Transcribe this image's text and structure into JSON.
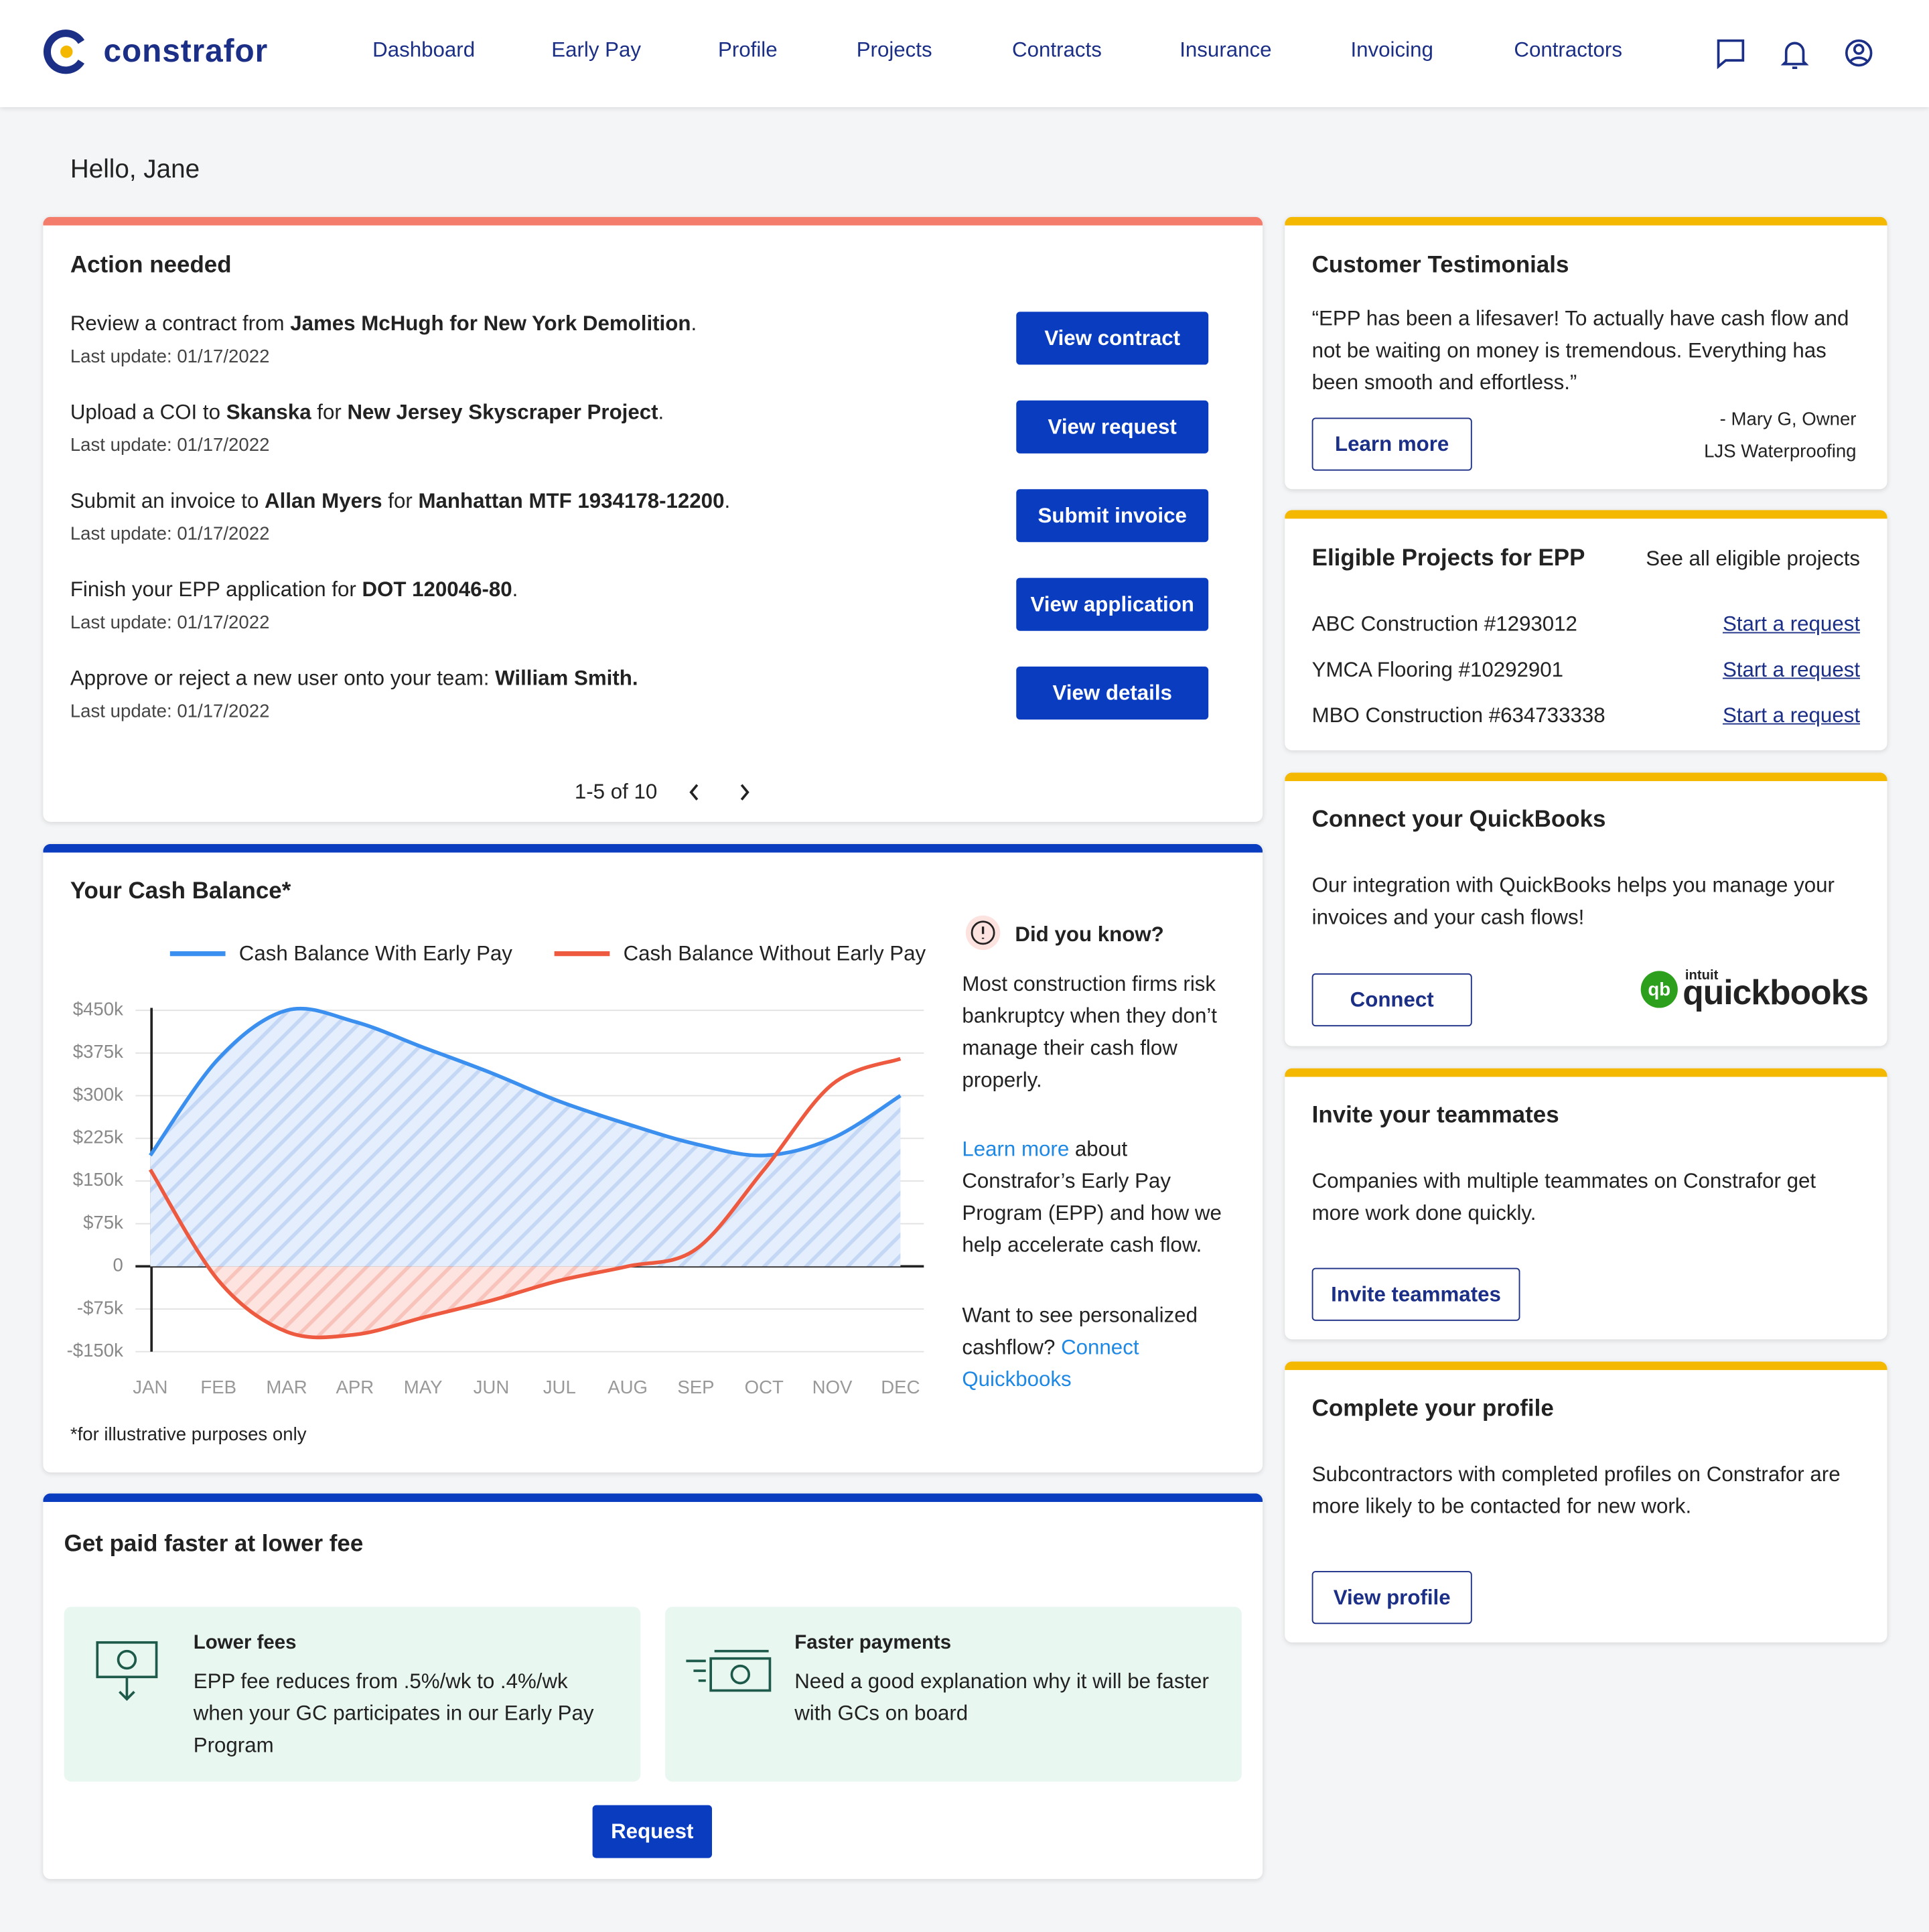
{
  "header": {
    "logo": "constrafor",
    "nav": [
      "Dashboard",
      "Early Pay",
      "Profile",
      "Projects",
      "Contracts",
      "Insurance",
      "Invoicing",
      "Contractors"
    ]
  },
  "greeting": "Hello, Jane",
  "action_needed": {
    "title": "Action needed",
    "items": [
      {
        "segments": [
          {
            "text": "Review a contract from "
          },
          {
            "text": "James McHugh for New York Demolition",
            "bold": true
          },
          {
            "text": "."
          }
        ],
        "update": "Last update: 01/17/2022",
        "button": "View contract"
      },
      {
        "segments": [
          {
            "text": "Upload a COI to "
          },
          {
            "text": "Skanska",
            "bold": true
          },
          {
            "text": " for "
          },
          {
            "text": "New Jersey Skyscraper Project",
            "bold": true
          },
          {
            "text": "."
          }
        ],
        "update": "Last update: 01/17/2022",
        "button": "View request"
      },
      {
        "segments": [
          {
            "text": "Submit an invoice to "
          },
          {
            "text": "Allan Myers",
            "bold": true
          },
          {
            "text": " for "
          },
          {
            "text": "Manhattan MTF 1934178-12200",
            "bold": true
          },
          {
            "text": "."
          }
        ],
        "update": "Last update: 01/17/2022",
        "button": "Submit invoice"
      },
      {
        "segments": [
          {
            "text": "Finish your EPP application for "
          },
          {
            "text": "DOT 120046-80",
            "bold": true
          },
          {
            "text": "."
          }
        ],
        "update": "Last update: 01/17/2022",
        "button": "View application"
      },
      {
        "segments": [
          {
            "text": "Approve or reject a new user onto your team: "
          },
          {
            "text": "William Smith.",
            "bold": true
          }
        ],
        "update": "Last update: 01/17/2022",
        "button": "View details"
      }
    ],
    "pagination": "1-5 of 10"
  },
  "cash_balance": {
    "title": "Your Cash Balance*",
    "footnote": "*for illustrative purposes only",
    "did_you_know": {
      "title": "Did you know?",
      "paragraphs": [
        [
          {
            "text": "Most construction firms risk bankruptcy when they don’t manage their cash flow properly."
          }
        ],
        [
          {
            "text": "Learn more",
            "link": true
          },
          {
            "text": " about Constrafor’s Early Pay Program (EPP) and how we help accelerate cash flow."
          }
        ],
        [
          {
            "text": "Want to see personalized cashflow? "
          },
          {
            "text": "Connect Quickbooks",
            "link": true
          }
        ]
      ]
    }
  },
  "chart_data": {
    "type": "line",
    "categories": [
      "JAN",
      "FEB",
      "MAR",
      "APR",
      "MAY",
      "JUN",
      "JUL",
      "AUG",
      "SEP",
      "OCT",
      "NOV",
      "DEC"
    ],
    "series": [
      {
        "name": "Cash Balance With Early Pay",
        "color": "#3b8fef",
        "values": [
          195000,
          365000,
          450000,
          430000,
          385000,
          340000,
          290000,
          250000,
          215000,
          195000,
          225000,
          300000
        ]
      },
      {
        "name": "Cash Balance Without Early Pay",
        "color": "#ee5a3f",
        "values": [
          170000,
          -25000,
          -115000,
          -120000,
          -90000,
          -60000,
          -25000,
          0,
          30000,
          170000,
          320000,
          365000
        ]
      }
    ],
    "ylim": [
      -150000,
      450000
    ],
    "yticks": [
      {
        "value": -150000,
        "label": "-$150k"
      },
      {
        "value": -75000,
        "label": "-$75k"
      },
      0,
      {
        "value": 75000,
        "label": "$75k"
      },
      {
        "value": 150000,
        "label": "$150k"
      },
      {
        "value": 225000,
        "label": "$225k"
      },
      {
        "value": 300000,
        "label": "$300k"
      },
      {
        "value": 375000,
        "label": "$375k"
      },
      {
        "value": 450000,
        "label": "$450k"
      }
    ],
    "grid": true,
    "legend": "top"
  },
  "fees": {
    "title": "Get paid faster at lower fee",
    "cards": [
      {
        "title": "Lower fees",
        "text": "EPP fee reduces from .5%/wk to .4%/wk when your GC participates in our Early Pay Program"
      },
      {
        "title": "Faster payments",
        "text": "Need a good explanation why it will be faster with GCs on board"
      }
    ],
    "button": "Request"
  },
  "testimonials": {
    "title": "Customer Testimonials",
    "quote": "“EPP has been a lifesaver! To actually have cash flow and not be waiting on money is tremendous. Everything has been smooth and effortless.”",
    "author": "- Mary G, Owner",
    "company": "LJS Waterproofing",
    "button": "Learn more"
  },
  "eligible": {
    "title": "Eligible Projects for EPP",
    "see_all": "See all eligible projects",
    "rows": [
      {
        "name": "ABC Construction #1293012",
        "link": "Start a request"
      },
      {
        "name": "YMCA Flooring #10292901",
        "link": "Start a request"
      },
      {
        "name": "MBO Construction #634733338",
        "link": "Start a request"
      }
    ]
  },
  "quickbooks": {
    "title": "Connect your QuickBooks",
    "text": "Our integration with QuickBooks helps you manage your invoices and your cash flows!",
    "button": "Connect",
    "logo": {
      "icon": "qb",
      "brand": "intuit",
      "name": "quickbooks"
    }
  },
  "invite": {
    "title": "Invite your teammates",
    "text": "Companies with multiple teammates on Constrafor get more work done quickly.",
    "button": "Invite teammates"
  },
  "profile": {
    "title": "Complete your profile",
    "text": "Subcontractors with completed profiles on Constrafor are more likely to be contacted for new work.",
    "button": "View profile"
  }
}
